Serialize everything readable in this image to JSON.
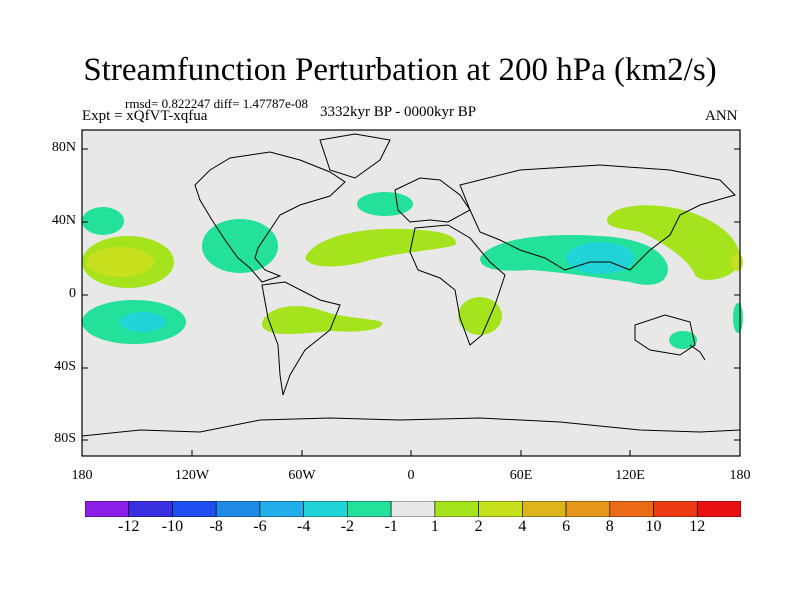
{
  "title": "Streamfunction Perturbation at 200 hPa (km2/s)",
  "stats": "rmsd= 0.822247 diff= 1.47787e-08",
  "experiment": "Expt = xQfVT-xqfua",
  "period": "3332kyr BP - 0000kyr BP",
  "season": "ANN",
  "lat_labels": [
    "80N",
    "40N",
    "0",
    "40S",
    "80S"
  ],
  "lon_labels": [
    "180",
    "120W",
    "60W",
    "0",
    "60E",
    "120E",
    "180"
  ],
  "colorbar": {
    "labels": [
      "-12",
      "-10",
      "-8",
      "-6",
      "-4",
      "-2",
      "-1",
      "1",
      "2",
      "4",
      "6",
      "8",
      "10",
      "12"
    ],
    "colors": [
      "#8c1fe8",
      "#3a2fe0",
      "#1f4ff0",
      "#1e8ae6",
      "#22aee8",
      "#1fd3d6",
      "#23e09a",
      "#e8e8e8",
      "#a5e31c",
      "#c6e01e",
      "#dcb41a",
      "#e6961b",
      "#ea6a18",
      "#ec3c14",
      "#e81010"
    ]
  },
  "colors": {
    "background": "#e8e8e8",
    "pos1": "#a5e31c",
    "pos2": "#c6e01e",
    "neg1": "#23e09a",
    "neg2": "#1fd3d6"
  }
}
